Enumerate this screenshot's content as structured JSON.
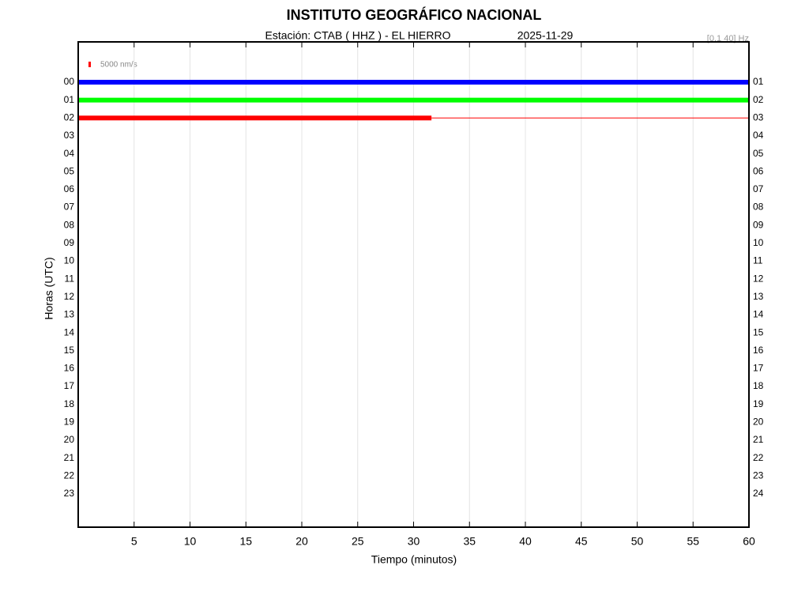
{
  "chart_data": {
    "type": "helicorder",
    "title": "INSTITUTO GEOGRÁFICO NACIONAL",
    "subtitle": "Estación:  CTAB ( HHZ ) - EL HIERRO",
    "date": "2025-11-29",
    "filter": "[0.1 40] Hz",
    "scale_label": "5000 nm/s",
    "xlabel": "Tiempo (minutos)",
    "ylabel": "Horas (UTC)",
    "xlim": [
      0,
      60
    ],
    "xticks": [
      5,
      10,
      15,
      20,
      25,
      30,
      35,
      40,
      45,
      50,
      55,
      60
    ],
    "grid": true,
    "categories": [
      "00",
      "01",
      "02",
      "03",
      "04",
      "05",
      "06",
      "07",
      "08",
      "09",
      "10",
      "11",
      "12",
      "13",
      "14",
      "15",
      "16",
      "17",
      "18",
      "19",
      "20",
      "21",
      "22",
      "23"
    ],
    "right_labels": [
      "01",
      "02",
      "03",
      "04",
      "05",
      "06",
      "07",
      "08",
      "09",
      "10",
      "11",
      "12",
      "13",
      "14",
      "15",
      "16",
      "17",
      "18",
      "19",
      "20",
      "21",
      "22",
      "23",
      "24"
    ],
    "trace_colors": [
      "#0000ff",
      "#00ff00",
      "#ff0000"
    ],
    "trace_ends": [
      60,
      60,
      31.6
    ]
  }
}
